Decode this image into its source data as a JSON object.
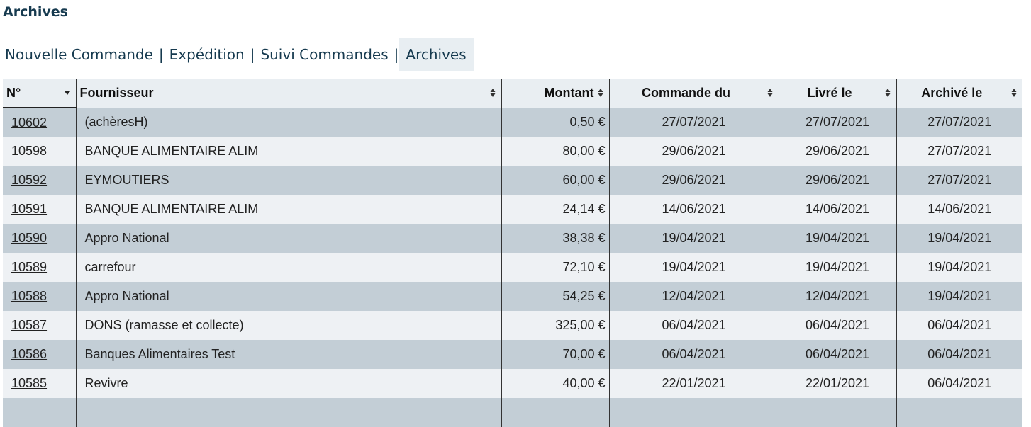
{
  "page": {
    "title": "Archives"
  },
  "nav": {
    "tabs": [
      {
        "label": "Nouvelle Commande",
        "active": false
      },
      {
        "label": "Expédition",
        "active": false
      },
      {
        "label": "Suivi Commandes",
        "active": false
      },
      {
        "label": "Archives",
        "active": true
      }
    ],
    "separator": "|"
  },
  "table": {
    "columns": {
      "no": "N°",
      "fournisseur": "Fournisseur",
      "montant": "Montant",
      "commande_du": "Commande du",
      "livre_le": "Livré le",
      "archive_le": "Archivé le"
    },
    "rows": [
      {
        "no": "10602",
        "fournisseur": "(achèresH)",
        "montant": "0,50 €",
        "commande_du": "27/07/2021",
        "livre_le": "27/07/2021",
        "archive_le": "27/07/2021"
      },
      {
        "no": "10598",
        "fournisseur": "BANQUE ALIMENTAIRE ALIM",
        "montant": "80,00 €",
        "commande_du": "29/06/2021",
        "livre_le": "29/06/2021",
        "archive_le": "27/07/2021"
      },
      {
        "no": "10592",
        "fournisseur": "EYMOUTIERS",
        "montant": "60,00 €",
        "commande_du": "29/06/2021",
        "livre_le": "29/06/2021",
        "archive_le": "27/07/2021"
      },
      {
        "no": "10591",
        "fournisseur": "BANQUE ALIMENTAIRE ALIM",
        "montant": "24,14 €",
        "commande_du": "14/06/2021",
        "livre_le": "14/06/2021",
        "archive_le": "14/06/2021"
      },
      {
        "no": "10590",
        "fournisseur": "Appro National",
        "montant": "38,38 €",
        "commande_du": "19/04/2021",
        "livre_le": "19/04/2021",
        "archive_le": "19/04/2021"
      },
      {
        "no": "10589",
        "fournisseur": "carrefour",
        "montant": "72,10 €",
        "commande_du": "19/04/2021",
        "livre_le": "19/04/2021",
        "archive_le": "19/04/2021"
      },
      {
        "no": "10588",
        "fournisseur": "Appro National",
        "montant": "54,25 €",
        "commande_du": "12/04/2021",
        "livre_le": "12/04/2021",
        "archive_le": "19/04/2021"
      },
      {
        "no": "10587",
        "fournisseur": "DONS (ramasse et collecte)",
        "montant": "325,00 €",
        "commande_du": "06/04/2021",
        "livre_le": "06/04/2021",
        "archive_le": "06/04/2021"
      },
      {
        "no": "10586",
        "fournisseur": "Banques Alimentaires Test",
        "montant": "70,00 €",
        "commande_du": "06/04/2021",
        "livre_le": "06/04/2021",
        "archive_le": "06/04/2021"
      },
      {
        "no": "10585",
        "fournisseur": "Revivre",
        "montant": "40,00 €",
        "commande_du": "22/01/2021",
        "livre_le": "22/01/2021",
        "archive_le": "06/04/2021"
      }
    ]
  },
  "colors": {
    "row_odd": "#c3ced6",
    "row_even": "#eef1f4",
    "header_bg": "#e9eef2",
    "title": "#163a4f",
    "active_tab_bg": "#e8eef2"
  },
  "icons": {
    "sort": "sort-updown-icon",
    "sort_active": "caret-down-icon"
  }
}
